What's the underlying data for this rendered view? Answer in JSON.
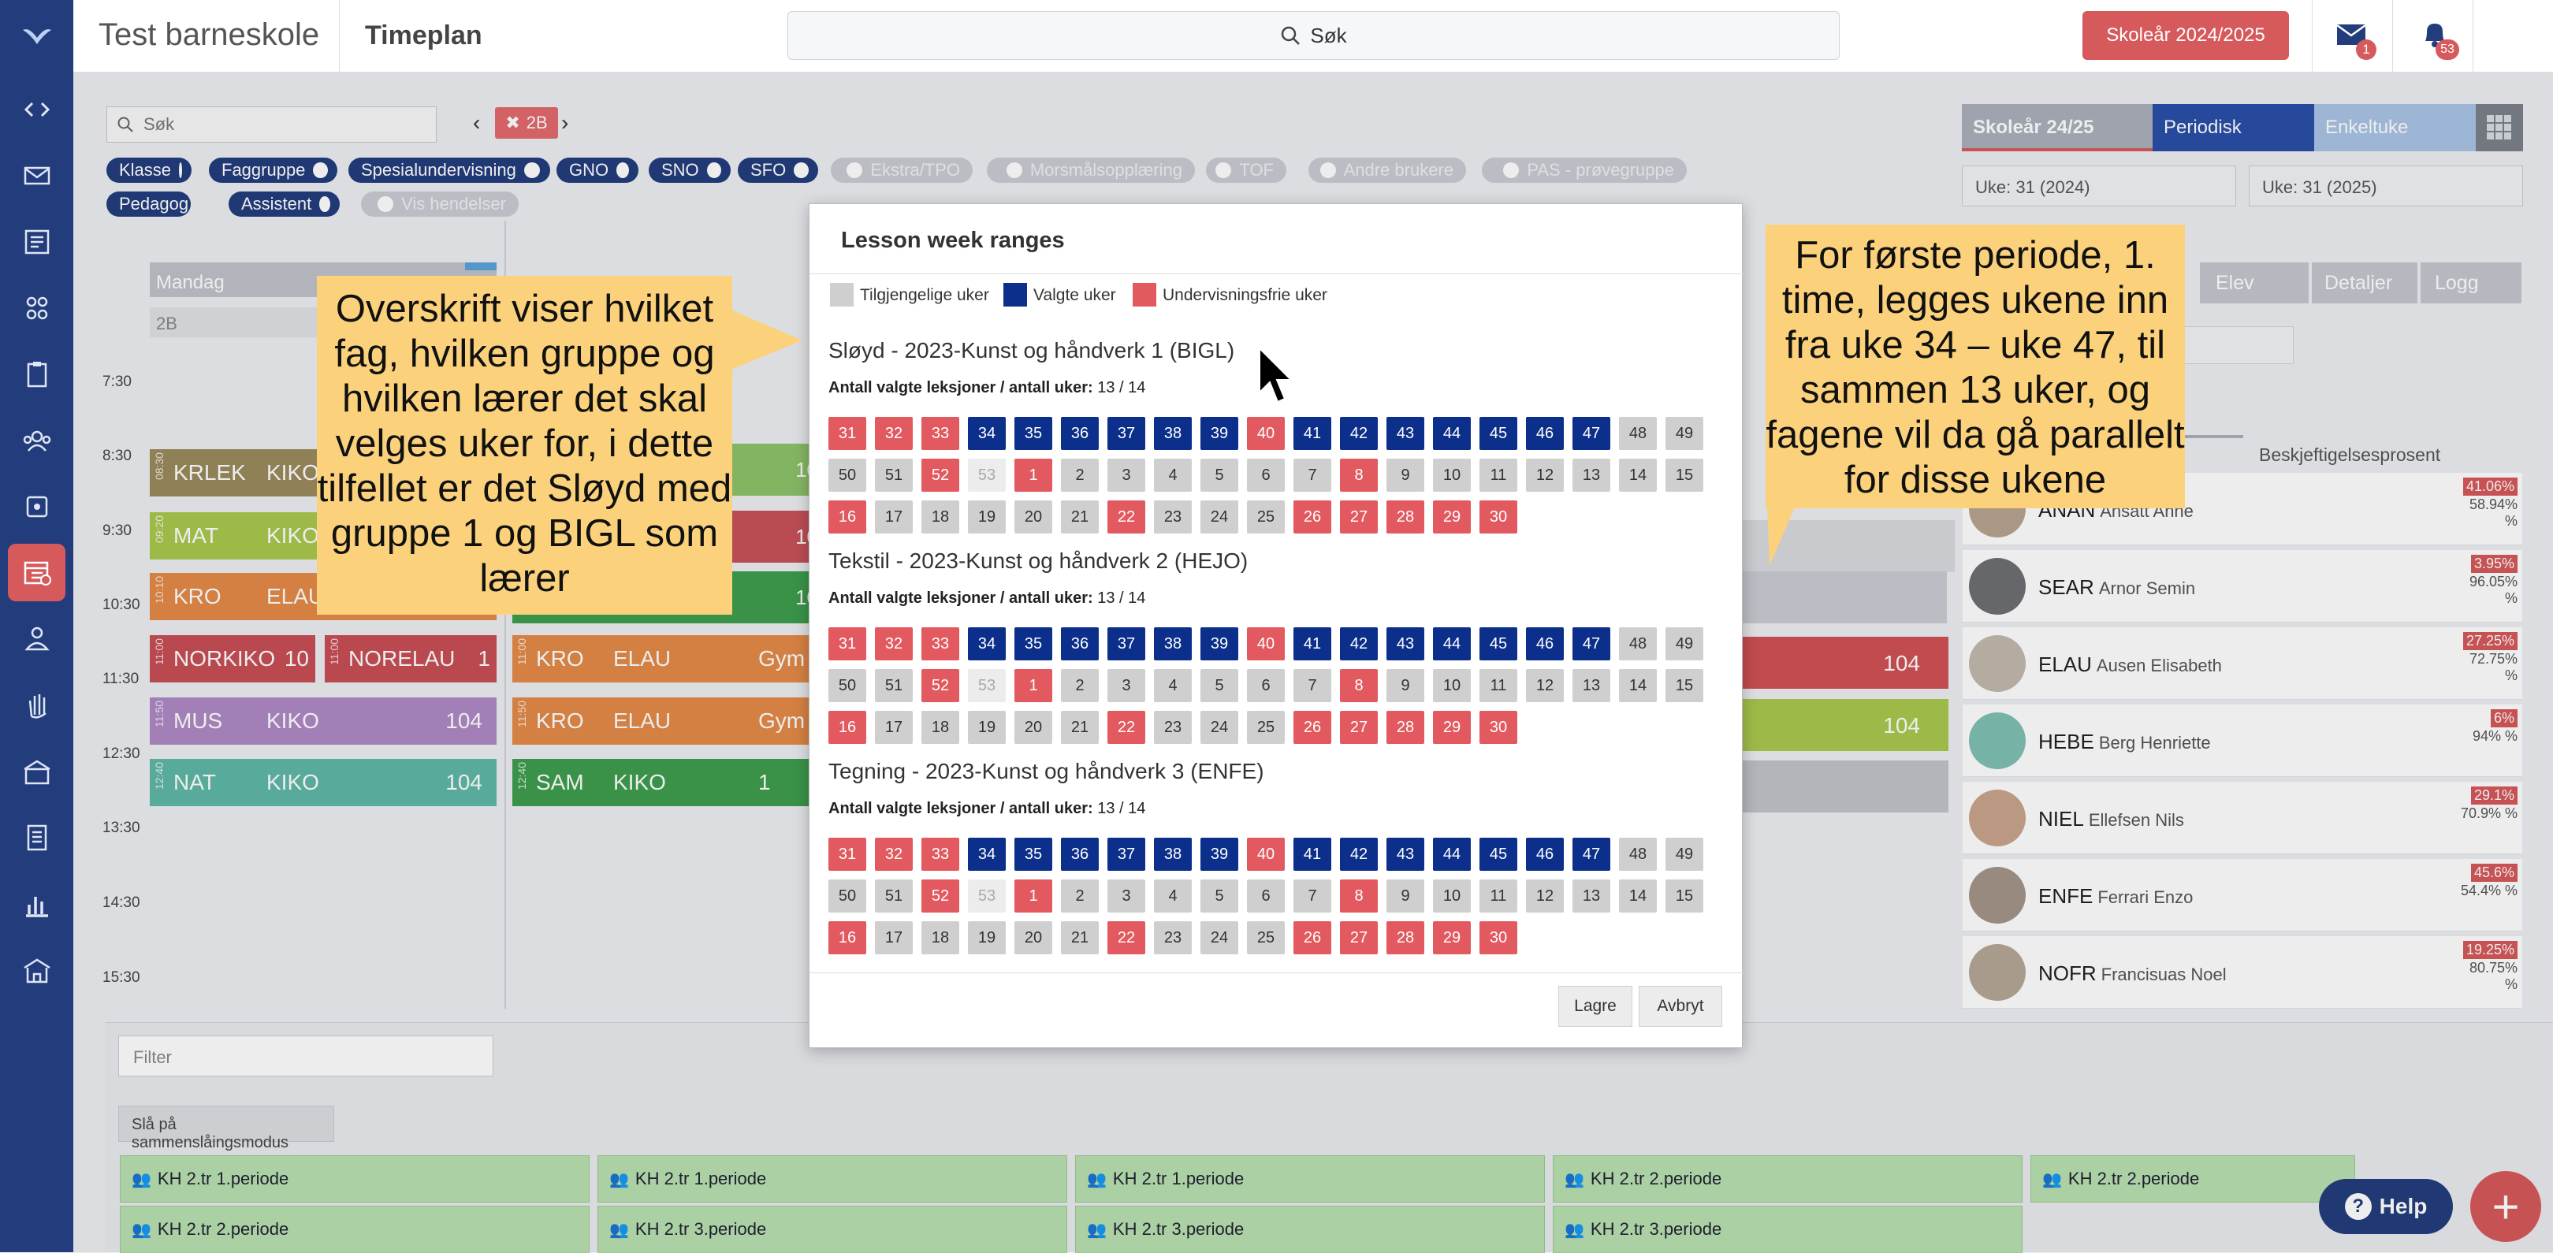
{
  "app": {
    "school": "Test barneskole",
    "page": "Timeplan",
    "search": "Søk",
    "year_button": "Skoleår 2024/2025",
    "mail_badge": "1",
    "bell_badge": "53"
  },
  "filters": {
    "search_placeholder": "Søk",
    "group_tag": "2B",
    "chips_on": [
      "Klasse",
      "Faggruppe",
      "Spesialundervisning",
      "GNO",
      "SNO",
      "SFO",
      "Pedagog",
      "Assistent"
    ],
    "chips_off": [
      "Ekstra/TPO",
      "Morsmålsopplæring",
      "TOF",
      "Andre brukere",
      "PAS - prøvegruppe",
      "Vis hendelser"
    ]
  },
  "timetable": {
    "day": "Mandag",
    "group": "2B",
    "times": [
      "7:30",
      "8:30",
      "9:30",
      "10:30",
      "11:30",
      "12:30",
      "13:30",
      "14:30",
      "15:30"
    ],
    "lessons": [
      {
        "time": "08:30",
        "subject": "KRLEK",
        "teacher": "KIKO",
        "room": ""
      },
      {
        "time": "09:20",
        "subject": "MAT",
        "teacher": "KIKO",
        "room": ""
      },
      {
        "time": "10:10",
        "subject": "KRO",
        "teacher": "ELAU",
        "room": ""
      },
      {
        "time": "11:00",
        "subject": "NORKIKO",
        "teacher": "",
        "room": "10"
      },
      {
        "time": "11:00",
        "subject": "NORELAU",
        "teacher": "",
        "room": "1"
      },
      {
        "time": "11:50",
        "subject": "MUS",
        "teacher": "KIKO",
        "room": "104"
      },
      {
        "time": "12:40",
        "subject": "NAT",
        "teacher": "KIKO",
        "room": "104"
      }
    ],
    "col2": [
      {
        "time": "11:00",
        "subject": "KRO",
        "teacher": "ELAU",
        "room": "Gym"
      },
      {
        "time": "11:50",
        "subject": "KRO",
        "teacher": "ELAU",
        "room": "Gym"
      },
      {
        "time": "12:40",
        "subject": "SAM",
        "teacher": "KIKO",
        "room": "1"
      }
    ],
    "partials": [
      "10",
      "10",
      "10",
      "104",
      "104"
    ]
  },
  "right_panel": {
    "tabs": [
      "Skoleår 24/25",
      "Periodisk",
      "Enkeltuke"
    ],
    "week_from": "Uke: 31 (2024)",
    "week_to": "Uke: 31 (2025)",
    "subtabs": [
      "Elev",
      "Detaljer",
      "Logg"
    ],
    "column": "Beskjeftigelsesprosent",
    "teachers": [
      {
        "code": "ANAN",
        "name": "Ansatt Anne",
        "p1": "41.06%",
        "p2": "58.94% %"
      },
      {
        "code": "SEAR",
        "name": "Arnor Semin",
        "p1": "3.95%",
        "p2": "96.05% %"
      },
      {
        "code": "ELAU",
        "name": "Ausen Elisabeth",
        "p1": "27.25%",
        "p2": "72.75% %"
      },
      {
        "code": "HEBE",
        "name": "Berg Henriette",
        "p1": "6%",
        "p2": "94% %"
      },
      {
        "code": "NIEL",
        "name": "Ellefsen Nils",
        "p1": "29.1%",
        "p2": "70.9% %"
      },
      {
        "code": "ENFE",
        "name": "Ferrari Enzo",
        "p1": "45.6%",
        "p2": "54.4% %"
      },
      {
        "code": "NOFR",
        "name": "Francisuas Noel",
        "p1": "19.25%",
        "p2": "80.75% %"
      }
    ]
  },
  "bottom": {
    "filter_placeholder": "Filter",
    "merge_button": "Slå på sammenslåingsmodus",
    "cells": [
      "KH 2.tr 1.periode",
      "KH 2.tr 1.periode",
      "KH 2.tr 1.periode",
      "KH 2.tr 2.periode",
      "KH 2.tr 2.periode",
      "KH 2.tr 2.periode",
      "KH 2.tr 3.periode",
      "KH 2.tr 3.periode",
      "KH 2.tr 3.periode"
    ],
    "help": "Help"
  },
  "modal": {
    "title": "Lesson week ranges",
    "legend": [
      "Tilgjengelige uker",
      "Valgte uker",
      "Undervisningsfrie uker"
    ],
    "count_label": "Antall valgte leksjoner / antall uker:",
    "sections": [
      {
        "title": "Sløyd - 2023-Kunst og håndverk 1 (BIGL)",
        "count": "13 / 14"
      },
      {
        "title": "Tekstil - 2023-Kunst og håndverk 2 (HEJO)",
        "count": "13 / 14"
      },
      {
        "title": "Tegning - 2023-Kunst og håndverk 3 (ENFE)",
        "count": "13 / 14"
      }
    ],
    "weeks": [
      [
        "31",
        "r"
      ],
      [
        "32",
        "r"
      ],
      [
        "33",
        "r"
      ],
      [
        "34",
        "b"
      ],
      [
        "35",
        "b"
      ],
      [
        "36",
        "b"
      ],
      [
        "37",
        "b"
      ],
      [
        "38",
        "b"
      ],
      [
        "39",
        "b"
      ],
      [
        "40",
        "r"
      ],
      [
        "41",
        "b"
      ],
      [
        "42",
        "b"
      ],
      [
        "43",
        "b"
      ],
      [
        "44",
        "b"
      ],
      [
        "45",
        "b"
      ],
      [
        "46",
        "b"
      ],
      [
        "47",
        "b"
      ],
      [
        "48",
        "g"
      ],
      [
        "49",
        "g"
      ],
      [
        "50",
        "g"
      ],
      [
        "51",
        "g"
      ],
      [
        "52",
        "r"
      ],
      [
        "53",
        "n"
      ],
      [
        "1",
        "r"
      ],
      [
        "2",
        "g"
      ],
      [
        "3",
        "g"
      ],
      [
        "4",
        "g"
      ],
      [
        "5",
        "g"
      ],
      [
        "6",
        "g"
      ],
      [
        "7",
        "g"
      ],
      [
        "8",
        "r"
      ],
      [
        "9",
        "g"
      ],
      [
        "10",
        "g"
      ],
      [
        "11",
        "g"
      ],
      [
        "12",
        "g"
      ],
      [
        "13",
        "g"
      ],
      [
        "14",
        "g"
      ],
      [
        "15",
        "g"
      ],
      [
        "16",
        "r"
      ],
      [
        "17",
        "g"
      ],
      [
        "18",
        "g"
      ],
      [
        "19",
        "g"
      ],
      [
        "20",
        "g"
      ],
      [
        "21",
        "g"
      ],
      [
        "22",
        "r"
      ],
      [
        "23",
        "g"
      ],
      [
        "24",
        "g"
      ],
      [
        "25",
        "g"
      ],
      [
        "26",
        "r"
      ],
      [
        "27",
        "r"
      ],
      [
        "28",
        "r"
      ],
      [
        "29",
        "r"
      ],
      [
        "30",
        "r"
      ]
    ],
    "save": "Lagre",
    "cancel": "Avbryt"
  },
  "callouts": {
    "left": "Overskrift viser hvilket fag, hvilken gruppe og hvilken lærer det skal velges uker for, i dette tilfellet er det Sløyd med gruppe 1 og BIGL som lærer",
    "right": "For første periode, 1. time, legges ukene inn fra uke 34 – uke 47, til sammen 13 uker, og fagene vil da gå parallelt for disse ukene"
  },
  "colors": {
    "navy": "#233d7c",
    "selected": "#0b2f8a",
    "free": "#e25a5f",
    "available": "#cfcfcf",
    "accent": "#d6595b",
    "callout": "#fbd27b"
  }
}
